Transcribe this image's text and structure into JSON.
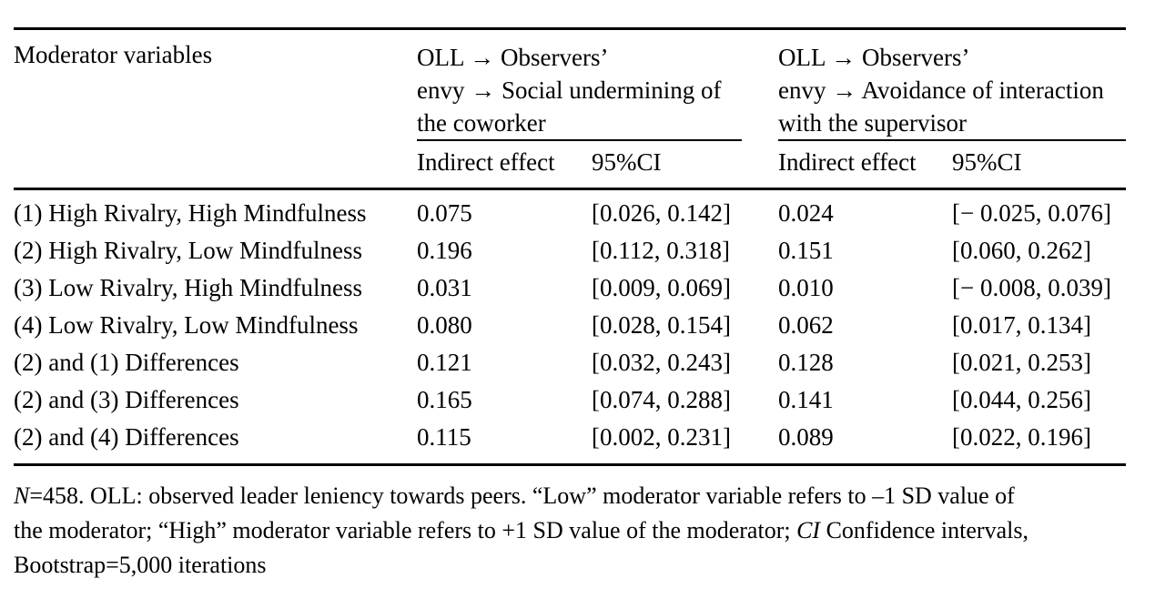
{
  "table": {
    "stub_header": "Moderator variables",
    "group1": {
      "title_line1": "OLL → Observers’",
      "title_line2": "envy → Social undermining of",
      "title_line3": "the coworker",
      "sub_effect": "Indirect effect",
      "sub_ci": "95%CI"
    },
    "group2": {
      "title_line1": "OLL → Observers’",
      "title_line2": "envy → Avoidance of interaction",
      "title_line3": "with the supervisor",
      "sub_effect": "Indirect effect",
      "sub_ci": "95%CI"
    },
    "rows": [
      {
        "label": "(1) High Rivalry, High Mindfulness",
        "ie1": "0.075",
        "ci1": "[0.026, 0.142]",
        "ie2": "0.024",
        "ci2": "[− 0.025, 0.076]"
      },
      {
        "label": "(2) High Rivalry, Low Mindfulness",
        "ie1": "0.196",
        "ci1": "[0.112, 0.318]",
        "ie2": "0.151",
        "ci2": "[0.060, 0.262]"
      },
      {
        "label": "(3) Low Rivalry, High Mindfulness",
        "ie1": "0.031",
        "ci1": "[0.009, 0.069]",
        "ie2": "0.010",
        "ci2": "[− 0.008, 0.039]"
      },
      {
        "label": "(4) Low Rivalry, Low Mindfulness",
        "ie1": "0.080",
        "ci1": "[0.028, 0.154]",
        "ie2": "0.062",
        "ci2": "[0.017, 0.134]"
      },
      {
        "label": "(2) and (1) Differences",
        "ie1": "0.121",
        "ci1": "[0.032, 0.243]",
        "ie2": "0.128",
        "ci2": "[0.021, 0.253]"
      },
      {
        "label": "(2) and (3) Differences",
        "ie1": "0.165",
        "ci1": "[0.074, 0.288]",
        "ie2": "0.141",
        "ci2": "[0.044, 0.256]"
      },
      {
        "label": "(2) and (4) Differences",
        "ie1": "0.115",
        "ci1": "[0.002, 0.231]",
        "ie2": "0.089",
        "ci2": "[0.022, 0.196]"
      }
    ]
  },
  "footnote": {
    "line1_italic": "N",
    "line1_rest": "=458. OLL: observed leader leniency towards peers. “Low” moderator variable refers to –1 SD value of",
    "line2_pre": "the moderator; “High” moderator variable refers to +1 SD value of the moderator; ",
    "line2_italic": "CI",
    "line2_post": " Confidence intervals,",
    "line3": "Bootstrap=5,000 iterations"
  },
  "colors": {
    "text": "#000000",
    "background": "#ffffff",
    "rule": "#000000"
  }
}
